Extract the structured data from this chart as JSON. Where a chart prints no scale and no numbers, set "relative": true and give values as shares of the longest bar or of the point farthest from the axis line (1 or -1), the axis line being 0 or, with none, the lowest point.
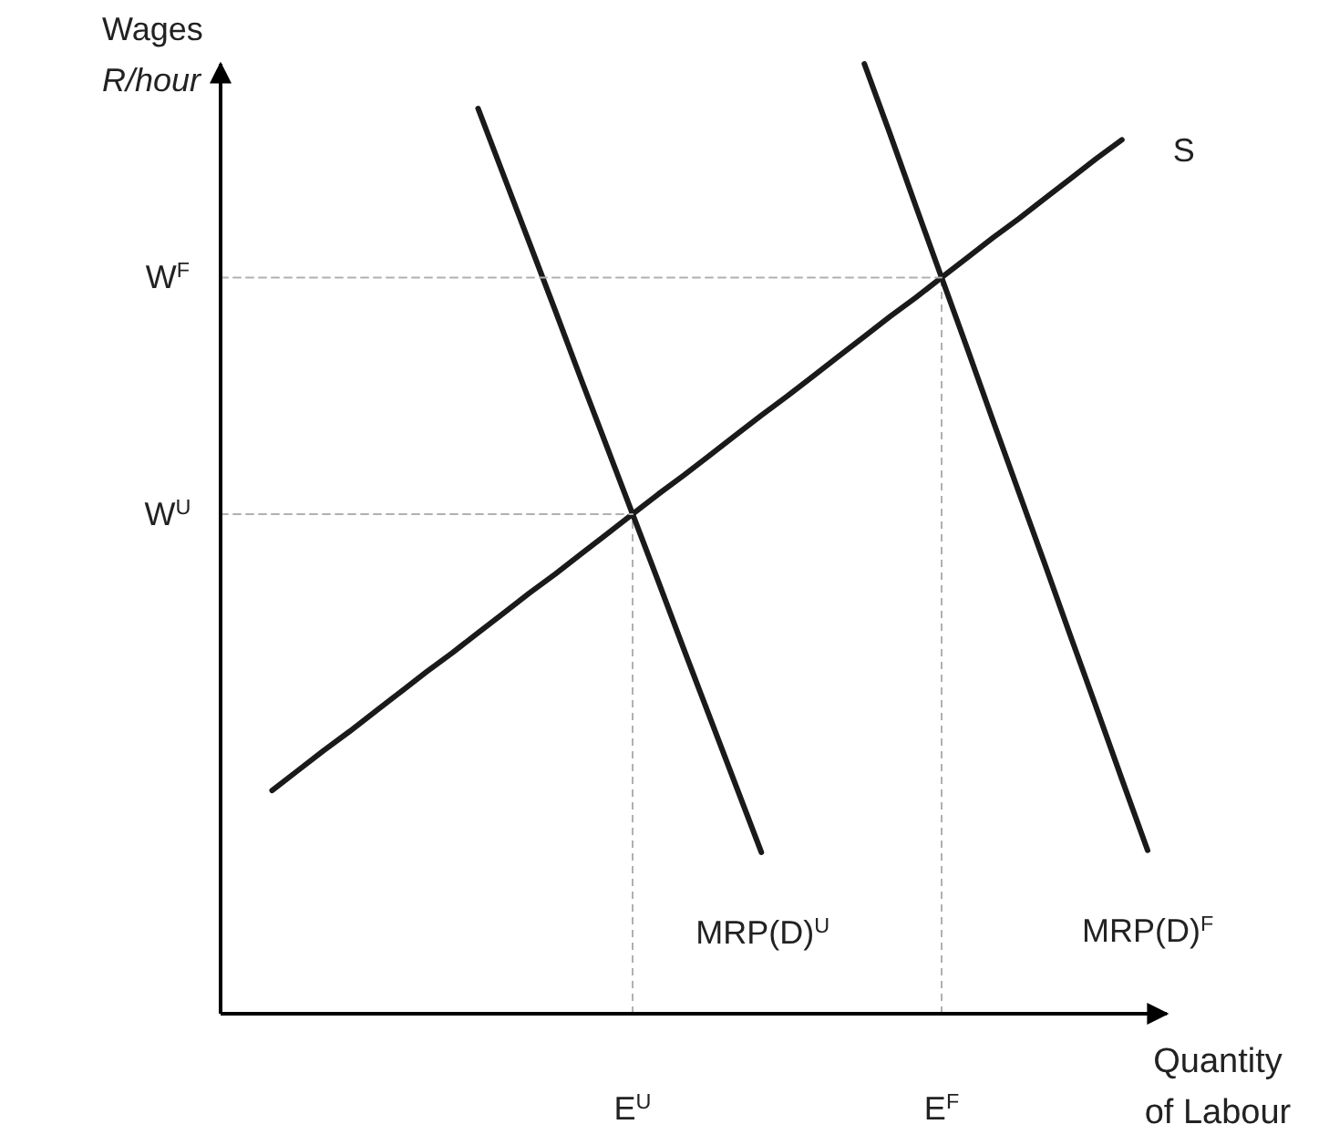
{
  "chart_data": {
    "type": "line",
    "relative": true,
    "xlabel": "Quantity\nof Labour",
    "ylabel": "Wages\nR/hour",
    "marker": "none",
    "categories": [
      null,
      null,
      null,
      null,
      null,
      null,
      null,
      null,
      null,
      null,
      null,
      null,
      null,
      null,
      null,
      null,
      "E$^{U}$",
      null,
      null,
      null,
      null,
      null,
      null,
      null,
      null,
      null,
      null,
      null,
      "E$^{F}$",
      null,
      null,
      null,
      null,
      null,
      null,
      null,
      null
    ],
    "ref_lines": [
      {
        "axis": "x",
        "value": "E$^{U}$",
        "color": "#b0b0b0",
        "line_style": "dashed"
      },
      {
        "axis": "x",
        "value": "E$^{F}$",
        "color": "#b0b0b0",
        "line_style": "dashed"
      }
    ],
    "series": [
      {
        "name": "S",
        "color": "#1a1a1a",
        "values": [
          null,
          null,
          0.235,
          0.256,
          0.277,
          0.297,
          0.318,
          0.339,
          0.36,
          0.38,
          0.401,
          0.422,
          0.443,
          0.463,
          0.484,
          0.505,
          0.526,
          0.547,
          0.567,
          0.588,
          0.609,
          0.63,
          0.65,
          0.671,
          0.692,
          0.713,
          0.734,
          0.754,
          0.775,
          0.796,
          0.817,
          0.837,
          0.858,
          0.879,
          0.9,
          0.92,
          null
        ]
      },
      {
        "name": "MRP(D)$^{U}$",
        "color": "#1a1a1a",
        "values": [
          null,
          null,
          null,
          null,
          null,
          null,
          null,
          null,
          null,
          null,
          0.953,
          0.882,
          0.811,
          0.74,
          0.668,
          0.597,
          0.526,
          0.455,
          0.383,
          0.312,
          0.241,
          0.17,
          null,
          null,
          null,
          null,
          null,
          null,
          null,
          null,
          null,
          null,
          null,
          null,
          null,
          null,
          null
        ]
      },
      {
        "name": "MRP(D)$^{F}$",
        "color": "#1a1a1a",
        "values": [
          null,
          null,
          null,
          null,
          null,
          null,
          null,
          null,
          null,
          null,
          null,
          null,
          null,
          null,
          null,
          null,
          null,
          null,
          null,
          null,
          null,
          null,
          null,
          null,
          null,
          1,
          0.926,
          0.85,
          0.775,
          0.7,
          0.624,
          0.549,
          0.474,
          0.398,
          0.323,
          0.247,
          0.172
        ]
      },
      {
        "name": "W$^{U}$",
        "color": "#b0b0b0",
        "line_style": "dashed",
        "values": [
          0.526,
          0.526,
          0.526,
          0.526,
          0.526,
          0.526,
          0.526,
          0.526,
          0.526,
          0.526,
          0.526,
          0.526,
          0.526,
          0.526,
          0.526,
          0.526,
          0.526,
          null,
          null,
          null,
          null,
          null,
          null,
          null,
          null,
          null,
          null,
          null,
          null,
          null,
          null,
          null,
          null,
          null,
          null,
          null,
          null
        ]
      },
      {
        "name": "W$^{F}$",
        "color": "#b0b0b0",
        "line_style": "dashed",
        "values": [
          0.775,
          0.775,
          0.775,
          0.775,
          0.775,
          0.775,
          0.775,
          0.775,
          0.775,
          0.775,
          0.775,
          0.775,
          0.775,
          0.775,
          0.775,
          0.775,
          0.775,
          0.775,
          0.775,
          0.775,
          0.775,
          0.775,
          0.775,
          0.775,
          0.775,
          0.775,
          0.775,
          0.775,
          0.775,
          null,
          null,
          null,
          null,
          null,
          null,
          null,
          null
        ]
      }
    ]
  }
}
